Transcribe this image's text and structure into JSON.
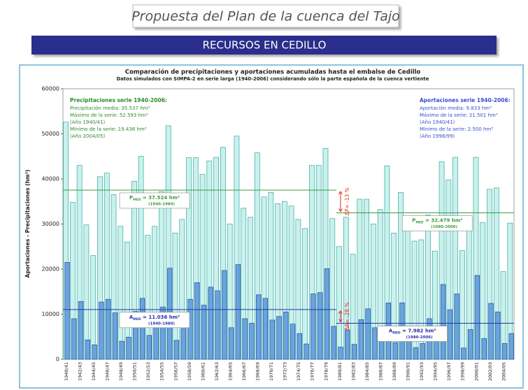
{
  "header": {
    "title": "Propuesta del Plan de la cuenca del Tajo",
    "banner": "RECURSOS EN CEDILLO"
  },
  "chart_data": {
    "type": "bar",
    "title": "Comparación de precipitaciones y aportaciones acumuladas hasta el embalse de Cedillo",
    "subtitle": "Datos simulados con SIMPA-2 en serie larga (1940-2006) considerando sólo la parte española de la cuenca vertiente",
    "y_label": "Aportaciones - Precipitaciones (hm³)",
    "categories": [
      "1940/41",
      null,
      "1942/43",
      null,
      "1944/45",
      null,
      "1946/47",
      null,
      "1948/49",
      null,
      "1950/51",
      null,
      "1952/53",
      null,
      "1954/55",
      null,
      "1956/57",
      null,
      "1958/59",
      null,
      "1960/61",
      null,
      "1962/63",
      null,
      "1964/65",
      null,
      "1966/67",
      null,
      "1968/69",
      null,
      "1970/71",
      null,
      "1972/73",
      null,
      "1974/75",
      null,
      "1976/77",
      null,
      "1978/79",
      null,
      "1980/81",
      null,
      "1982/83",
      null,
      "1984/85",
      null,
      "1986/87",
      null,
      "1988/89",
      null,
      "1990/91",
      null,
      "1992/93",
      null,
      "1994/95",
      null,
      "1996/97",
      null,
      "1998/99",
      null,
      "2000/01",
      null,
      "2002/03",
      null,
      "2004/05",
      null
    ],
    "series": [
      {
        "name": "Precipitaciones serie 1940-2006:",
        "color": "#c9f1ed",
        "stroke": "#38a89f",
        "values": [
          52593,
          34800,
          43000,
          29800,
          23000,
          40500,
          41300,
          36500,
          29500,
          26000,
          39500,
          45000,
          27500,
          29500,
          37200,
          51800,
          28000,
          31000,
          44700,
          44700,
          41000,
          44000,
          44800,
          47000,
          30000,
          49500,
          33500,
          31500,
          45800,
          36000,
          37000,
          34500,
          35000,
          34000,
          31000,
          29000,
          43000,
          43000,
          46800,
          31200,
          25000,
          31500,
          23300,
          35500,
          35500,
          30000,
          33200,
          42900,
          28000,
          37000,
          30700,
          26200,
          26500,
          32000,
          24000,
          43800,
          39800,
          44800,
          24100,
          31300,
          44800,
          30300,
          37700,
          38000,
          19436,
          30200
        ]
      },
      {
        "name": "Aportaciones serie 1940-2006:",
        "color": "#6aa3de",
        "stroke": "#24539e",
        "values": [
          21501,
          9000,
          12800,
          4300,
          3200,
          12700,
          13300,
          10300,
          4000,
          4900,
          10600,
          13500,
          5300,
          7000,
          11600,
          20200,
          4200,
          6800,
          13300,
          17000,
          12000,
          16000,
          15200,
          19700,
          7000,
          21000,
          9000,
          8000,
          14300,
          13500,
          8700,
          9500,
          10500,
          7800,
          5700,
          3400,
          14500,
          14800,
          20100,
          7300,
          2700,
          6500,
          3300,
          8800,
          11200,
          7000,
          6800,
          12500,
          3700,
          12500,
          6800,
          2600,
          3500,
          9000,
          4000,
          16600,
          11000,
          14500,
          2500,
          6600,
          18600,
          4600,
          12400,
          10500,
          3500,
          5700
        ]
      }
    ],
    "info": [
      {
        "color": "#2e8b2e",
        "lines": [
          "Precipitación media: 35.537 hm³",
          "Máximo de la serie: 52.593 hm³",
          "(Año 1940/41)",
          "Mínimo de la serie: 19.436 hm³",
          "(Año 2004/05)"
        ]
      },
      {
        "color": "#3a4fcf",
        "lines": [
          "Aportación media: 9.833 hm³",
          "Máximo de la serie: 21.501 hm³",
          "(Año 1940/41)",
          "Mínimo de la serie: 2.500 hm³",
          "(Año 1998/99)"
        ]
      }
    ],
    "mean_lines": [
      {
        "symbol": "P",
        "sub": "MED",
        "text": " = 37.524 hm³",
        "period": "(1940-1980)",
        "value": 37524,
        "color": "#3f9b3f",
        "before": "1980/81"
      },
      {
        "symbol": "P",
        "sub": "MED",
        "text": " = 32.479 hm³",
        "period": "(1980-2006)",
        "value": 32479,
        "color": "#3f9b3f",
        "after": "1980/81"
      },
      {
        "symbol": "A",
        "sub": "MED",
        "text": " = 11.036 hm³",
        "period": "(1940-1980)",
        "value": 11036,
        "color": "#2733a8",
        "before": "1980/81"
      },
      {
        "symbol": "A",
        "sub": "MED",
        "text": " = 7.982 hm³",
        "period": "(1980-2006)",
        "value": 7982,
        "color": "#2733a8",
        "after": "1980/81"
      }
    ],
    "deltas": [
      {
        "label": "ΔP= -13 %",
        "between": [
          0,
          1
        ]
      },
      {
        "label": "ΔA= -28 %",
        "between": [
          2,
          3
        ]
      }
    ],
    "ylim": [
      0,
      60000
    ],
    "yticks": [
      0,
      10000,
      20000,
      30000,
      40000,
      50000,
      60000
    ]
  }
}
